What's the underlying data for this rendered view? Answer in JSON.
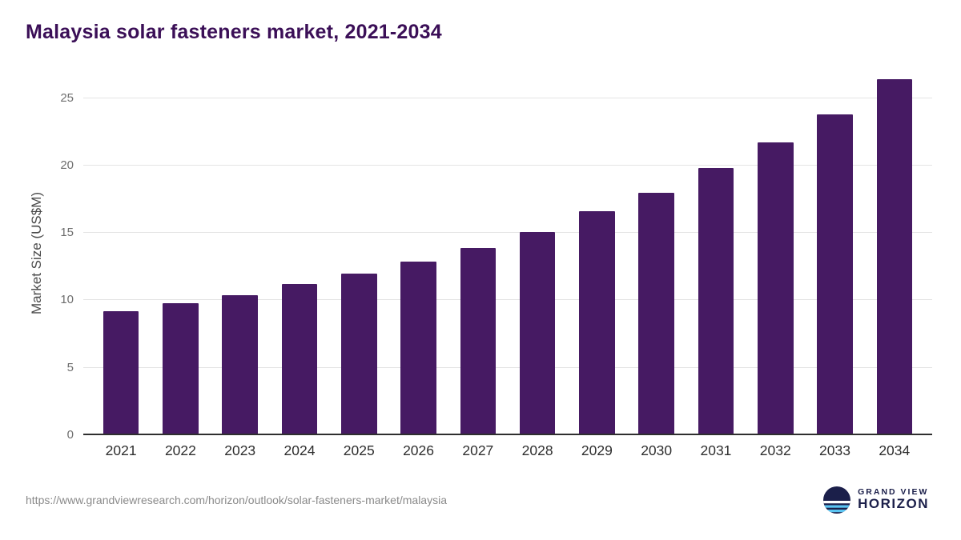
{
  "chart_data": {
    "type": "bar",
    "title": "Malaysia solar fasteners market, 2021-2034",
    "categories": [
      "2021",
      "2022",
      "2023",
      "2024",
      "2025",
      "2026",
      "2027",
      "2028",
      "2029",
      "2030",
      "2031",
      "2032",
      "2033",
      "2034"
    ],
    "values": [
      9.2,
      9.8,
      10.4,
      11.2,
      12.0,
      12.9,
      13.9,
      15.1,
      16.6,
      18.0,
      19.8,
      21.7,
      23.8,
      26.4
    ],
    "xlabel": "",
    "ylabel": "Market Size (US$M)",
    "ylim": [
      0,
      27
    ],
    "yticks": [
      0,
      5,
      10,
      15,
      20,
      25
    ],
    "grid": true,
    "legend": false,
    "bar_color": "#461a63"
  },
  "colors": {
    "title": "#3b0f57",
    "bar": "#461a63",
    "gridline": "#e4e4e4",
    "axis_line": "#2f2f2f",
    "logo_navy": "#1b1f4a",
    "logo_blue": "#5bc5f2"
  },
  "footer": {
    "source_url": "https://www.grandviewresearch.com/horizon/outlook/solar-fasteners-market/malaysia",
    "logo": {
      "line1": "GRAND VIEW",
      "line2": "HORIZON"
    }
  }
}
